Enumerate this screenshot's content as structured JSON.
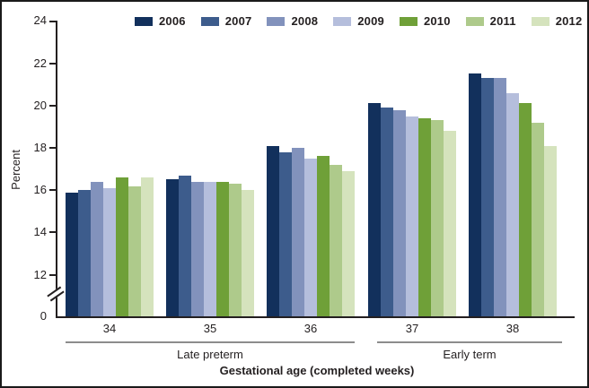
{
  "chart_data": {
    "type": "bar",
    "title": "",
    "xlabel": "Gestational age (completed weeks)",
    "ylabel": "Percent",
    "categories": [
      "34",
      "35",
      "36",
      "37",
      "38"
    ],
    "series": [
      {
        "name": "2006",
        "color": "#12305C",
        "values": [
          15.9,
          16.5,
          18.1,
          20.1,
          21.5
        ]
      },
      {
        "name": "2007",
        "color": "#3D5C8C",
        "values": [
          16.0,
          16.7,
          17.8,
          19.9,
          21.3
        ]
      },
      {
        "name": "2008",
        "color": "#8292BC",
        "values": [
          16.4,
          16.4,
          18.0,
          19.8,
          21.3
        ]
      },
      {
        "name": "2009",
        "color": "#B5BEDC",
        "values": [
          16.1,
          16.4,
          17.5,
          19.5,
          20.6
        ]
      },
      {
        "name": "2010",
        "color": "#6FA038",
        "values": [
          16.6,
          16.4,
          17.6,
          19.4,
          20.1
        ]
      },
      {
        "name": "2011",
        "color": "#AECA8B",
        "values": [
          16.2,
          16.3,
          17.2,
          19.3,
          19.2
        ]
      },
      {
        "name": "2012",
        "color": "#D5E3BD",
        "values": [
          16.6,
          16.0,
          16.9,
          18.8,
          18.1
        ]
      }
    ],
    "y_ticks": [
      24,
      22,
      20,
      18,
      16,
      14,
      12
    ],
    "y_origin_label": "0",
    "ylim": [
      0,
      24
    ],
    "axis_break_between": [
      0,
      12
    ],
    "grid": false,
    "legend_position": "top",
    "group_spans": [
      {
        "label": "Late preterm",
        "categories": [
          "34",
          "35",
          "36"
        ]
      },
      {
        "label": "Early term",
        "categories": [
          "37",
          "38"
        ]
      }
    ]
  }
}
